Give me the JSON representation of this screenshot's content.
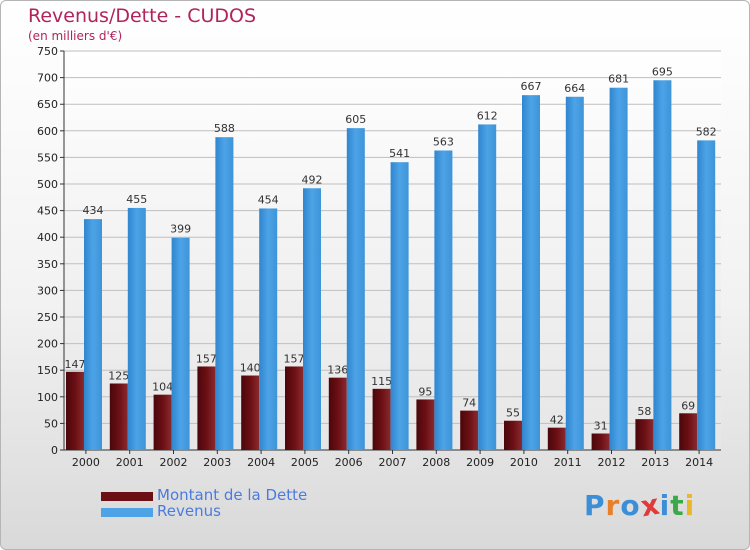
{
  "header": {
    "title": "Revenus/Dette - CUDOS",
    "subtitle": "(en milliers d'€)"
  },
  "colors": {
    "debt": "#6b0f14",
    "revenue": "#4da3e6",
    "title": "#b0245c",
    "axis_text": "#222222"
  },
  "chart_data": {
    "type": "bar",
    "title": "Revenus/Dette - CUDOS",
    "subtitle": "(en milliers d'€)",
    "categories": [
      "2000",
      "2001",
      "2002",
      "2003",
      "2004",
      "2005",
      "2006",
      "2007",
      "2008",
      "2009",
      "2010",
      "2011",
      "2012",
      "2013",
      "2014"
    ],
    "series": [
      {
        "name": "Montant de la Dette",
        "values": [
          147,
          125,
          104,
          157,
          140,
          157,
          136,
          115,
          95,
          74,
          55,
          42,
          31,
          58,
          69
        ]
      },
      {
        "name": "Revenus",
        "values": [
          434,
          455,
          399,
          588,
          454,
          492,
          605,
          541,
          563,
          612,
          667,
          664,
          681,
          695,
          582
        ]
      }
    ],
    "ylim": [
      0,
      750
    ],
    "yticks": [
      0,
      50,
      100,
      150,
      200,
      250,
      300,
      350,
      400,
      450,
      500,
      550,
      600,
      650,
      700,
      750
    ],
    "grid": true,
    "legend_position": "bottom-left"
  },
  "legend": {
    "items": [
      {
        "label": "Montant de la Dette",
        "color": "#6b0f14"
      },
      {
        "label": "Revenus",
        "color": "#4da3e6"
      }
    ]
  },
  "logo": {
    "letters": [
      "P",
      "r",
      "o",
      "x",
      "i",
      "t",
      "i"
    ],
    "colors": [
      "#3c8fd6",
      "#e8802a",
      "#3c8fd6",
      "#e03b3b",
      "#3c8fd6",
      "#3ba84a",
      "#e8b82a"
    ]
  }
}
